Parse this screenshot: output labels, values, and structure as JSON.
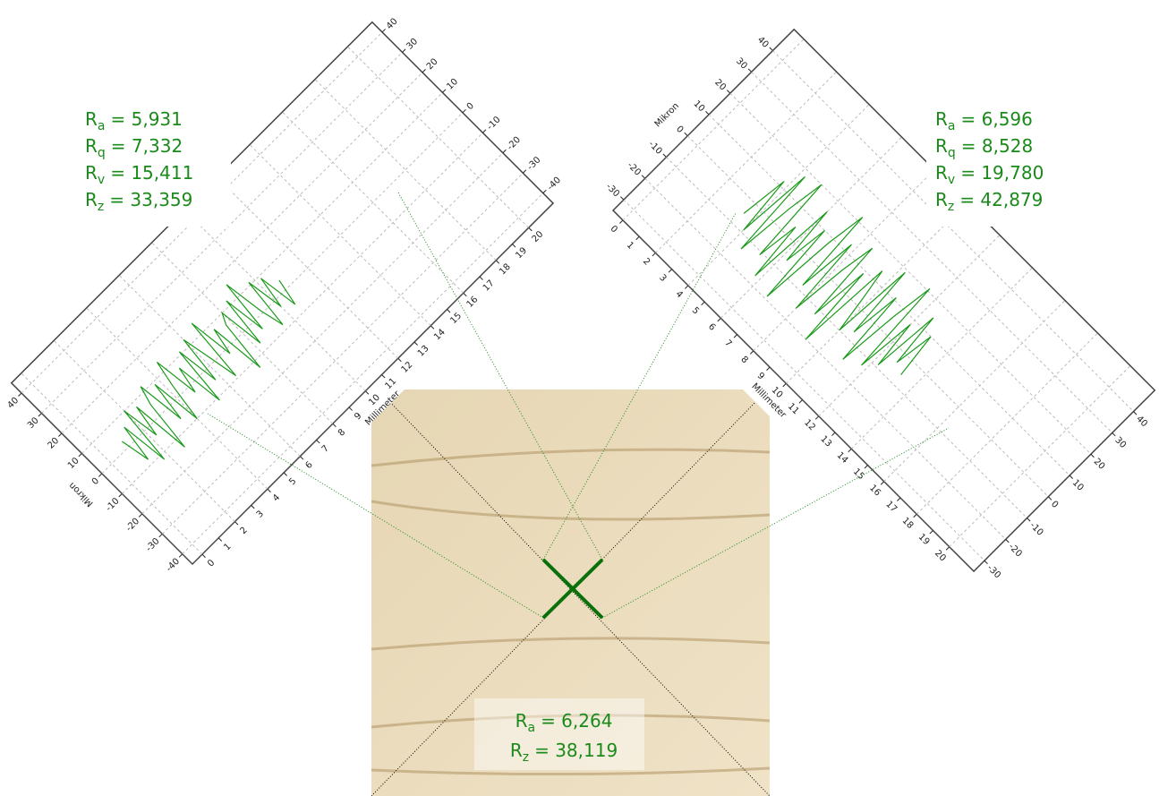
{
  "left_chart": {
    "type": "line",
    "x_label": "Millimeter",
    "y_label": "Mikron",
    "xlim": [
      -0.6,
      21.5
    ],
    "ylim": [
      -45,
      45
    ],
    "xticks": [
      0,
      1,
      2,
      3,
      4,
      5,
      6,
      7,
      8,
      9,
      10,
      11,
      12,
      13,
      14,
      15,
      16,
      17,
      18,
      19,
      20
    ],
    "yticks": [
      -40,
      -30,
      -20,
      -10,
      0,
      10,
      20,
      30,
      40
    ],
    "color": "#1a9a1a",
    "grid": true,
    "x": [
      1,
      1.25,
      1.5,
      1.75,
      2,
      2.25,
      2.5,
      2.75,
      3,
      3.25,
      3.5,
      3.75,
      4,
      4.25,
      4.5,
      4.75,
      5,
      5.25,
      5.5,
      5.75,
      6,
      6.25,
      6.5,
      6.75,
      7,
      7.25,
      7.5,
      7.75,
      8,
      8.25,
      8.5,
      8.75,
      9,
      9.25,
      9.5,
      9.75,
      10,
      10.25,
      10.5,
      10.75
    ],
    "values": [
      3,
      -8,
      6,
      -12,
      10,
      -4,
      8,
      -14,
      5,
      12,
      -6,
      9,
      -10,
      4,
      14,
      -3,
      7,
      -11,
      11,
      -5,
      13,
      2,
      -9,
      15,
      -2,
      8,
      -13,
      6,
      10,
      -7,
      12,
      -4,
      16,
      1,
      -8,
      11,
      -3,
      9,
      -6,
      4
    ],
    "stats": [
      {
        "base": "R",
        "sub": "a",
        "text": "=   5,931"
      },
      {
        "base": "R",
        "sub": "q",
        "text": "=   7,332"
      },
      {
        "base": "R",
        "sub": "v",
        "text": "= 15,411"
      },
      {
        "base": "R",
        "sub": "z",
        "text": "= 33,359"
      }
    ]
  },
  "right_chart": {
    "type": "line",
    "x_label": "Millimeter",
    "y_label": "Mikron",
    "xlim": [
      -0.6,
      21.5
    ],
    "ylim": [
      -35,
      50
    ],
    "xticks": [
      0,
      1,
      2,
      3,
      4,
      5,
      6,
      7,
      8,
      9,
      10,
      11,
      12,
      13,
      14,
      15,
      16,
      17,
      18,
      19,
      20
    ],
    "yticks": [
      -30,
      -20,
      -10,
      0,
      10,
      20,
      30,
      40
    ],
    "color": "#1a9a1a",
    "grid": true,
    "x": [
      3.5,
      3.75,
      4,
      4.25,
      4.5,
      4.75,
      5,
      5.25,
      5.5,
      5.75,
      6,
      6.25,
      6.5,
      6.75,
      7,
      7.25,
      7.5,
      7.75,
      8,
      8.25,
      8.5,
      8.75,
      9,
      9.25,
      9.5,
      9.75,
      10,
      10.25,
      10.5,
      10.75,
      11,
      11.25,
      11.5,
      11.75,
      12,
      12.25,
      12.5,
      12.75,
      13,
      13.25
    ],
    "values": [
      -5,
      12,
      -9,
      18,
      -14,
      7,
      20,
      -11,
      4,
      -17,
      15,
      -6,
      10,
      -19,
      8,
      22,
      -8,
      13,
      -15,
      5,
      17,
      -12,
      9,
      -20,
      14,
      3,
      -10,
      19,
      -7,
      11,
      -16,
      6,
      21,
      -13,
      8,
      -9,
      15,
      -4,
      10,
      -6
    ],
    "stats": [
      {
        "base": "R",
        "sub": "a",
        "text": "=   6,596"
      },
      {
        "base": "R",
        "sub": "q",
        "text": "=   8,528"
      },
      {
        "base": "R",
        "sub": "v",
        "text": "= 19,780"
      },
      {
        "base": "R",
        "sub": "z",
        "text": "= 42,879"
      }
    ]
  },
  "photo": {
    "stats": [
      {
        "base": "R",
        "sub": "a",
        "text": "= 6,264"
      },
      {
        "base": "R",
        "sub": "z",
        "text": "= 38,119"
      }
    ]
  }
}
